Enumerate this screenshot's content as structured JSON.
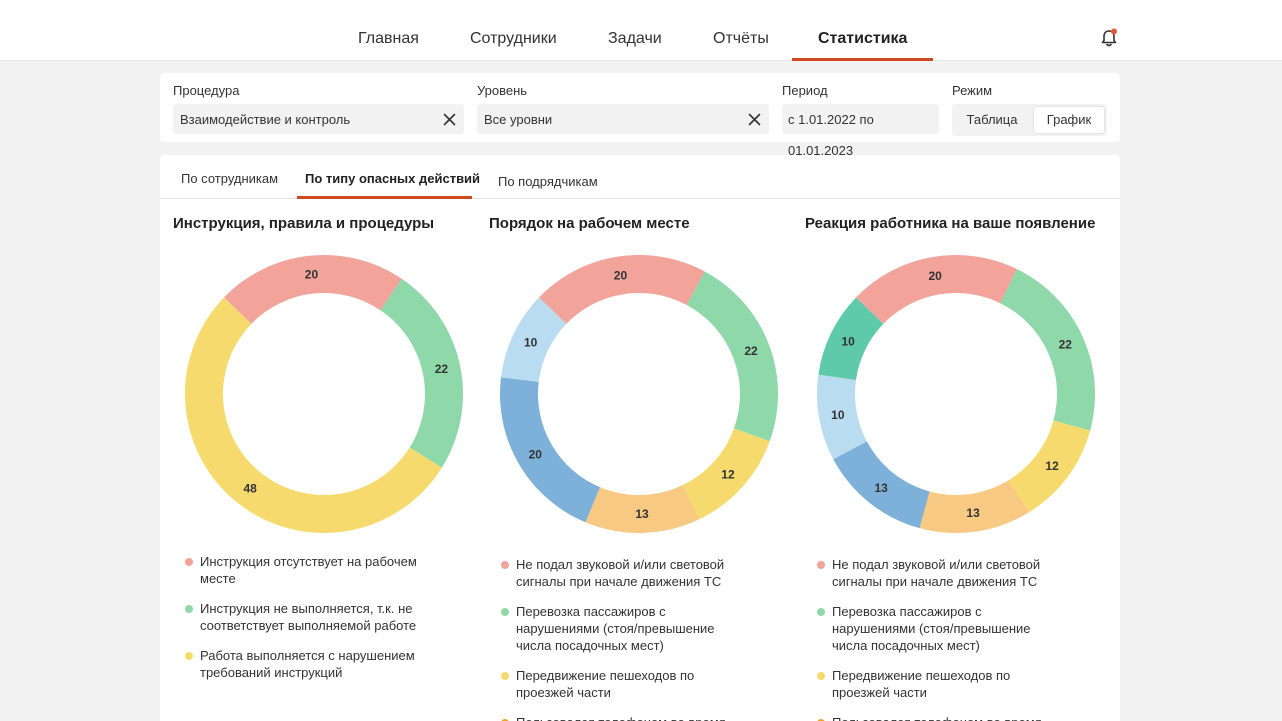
{
  "nav": {
    "items": [
      "Главная",
      "Сотрудники",
      "Задачи",
      "Отчёты",
      "Статистика"
    ],
    "active": 4
  },
  "filters": {
    "procedure": {
      "label": "Процедура",
      "value": "Взаимодействие и контроль"
    },
    "level": {
      "label": "Уровень",
      "value": "Все уровни"
    },
    "period": {
      "label": "Период",
      "value": "с 1.01.2022 по 01.01.2023"
    },
    "mode": {
      "label": "Режим",
      "options": [
        "Таблица",
        "График"
      ],
      "selected": "График"
    }
  },
  "tabs": [
    "По сотрудникам",
    "По типу опасных действий",
    "По подрядчикам"
  ],
  "colors": {
    "accent": "#cf4b1f",
    "salmon": "#f2a39a",
    "green": "#8fd8a9",
    "yellow": "#f7da6e",
    "orange": "#f8c983",
    "blue": "#7eb1d9",
    "lightblue": "#b9dcf1",
    "teal": "#5fcaa9",
    "amber": "#f0a32a"
  },
  "chart_data": [
    {
      "type": "pie",
      "title": "Инструкция, правила и процедуры",
      "slices": [
        {
          "value": 20,
          "color": "#f2a39a"
        },
        {
          "value": 22,
          "color": "#8fd8a9"
        },
        {
          "value": 48,
          "color": "#f7da6e"
        }
      ],
      "legend": [
        {
          "label": "Инструкция отсутствует на рабочем месте",
          "color": "#f2a39a"
        },
        {
          "label": "Инструкция не выполняется, т.к. не соответствует выполняемой работе",
          "color": "#8fd8a9"
        },
        {
          "label": "Работа выполняется с нарушением требований инструкций",
          "color": "#f7da6e"
        }
      ]
    },
    {
      "type": "pie",
      "title": "Порядок на рабочем месте",
      "slices": [
        {
          "value": 20,
          "color": "#f2a39a"
        },
        {
          "value": 22,
          "color": "#8fd8a9"
        },
        {
          "value": 12,
          "color": "#f7da6e"
        },
        {
          "value": 13,
          "color": "#f8c983"
        },
        {
          "value": 20,
          "color": "#7eb1d9"
        },
        {
          "value": 10,
          "color": "#b9dcf1"
        }
      ],
      "legend": [
        {
          "label": "Не подал звуковой и/или световой сигналы при начале движения ТС",
          "color": "#f2a39a"
        },
        {
          "label": "Перевозка пассажиров с нарушениями (стоя/превышение числа посадочных мест)",
          "color": "#8fd8a9"
        },
        {
          "label": "Передвижение пешеходов по проезжей части",
          "color": "#f7da6e"
        },
        {
          "label": "Пользовался телефоном во время",
          "color": "#f0a32a"
        }
      ]
    },
    {
      "type": "pie",
      "title": "Реакция работника на ваше появление",
      "slices": [
        {
          "value": 20,
          "color": "#f2a39a"
        },
        {
          "value": 22,
          "color": "#8fd8a9"
        },
        {
          "value": 12,
          "color": "#f7da6e"
        },
        {
          "value": 13,
          "color": "#f8c983"
        },
        {
          "value": 13,
          "color": "#7eb1d9"
        },
        {
          "value": 10,
          "color": "#b9dcf1"
        },
        {
          "value": 10,
          "color": "#5fcaa9"
        }
      ],
      "legend": [
        {
          "label": "Не подал звуковой и/или световой сигналы при начале движения ТС",
          "color": "#f2a39a"
        },
        {
          "label": "Перевозка пассажиров с нарушениями (стоя/превышение числа посадочных мест)",
          "color": "#8fd8a9"
        },
        {
          "label": "Передвижение пешеходов по проезжей части",
          "color": "#f7da6e"
        },
        {
          "label": "Пользовался телефоном во время",
          "color": "#f0a32a"
        }
      ]
    }
  ]
}
